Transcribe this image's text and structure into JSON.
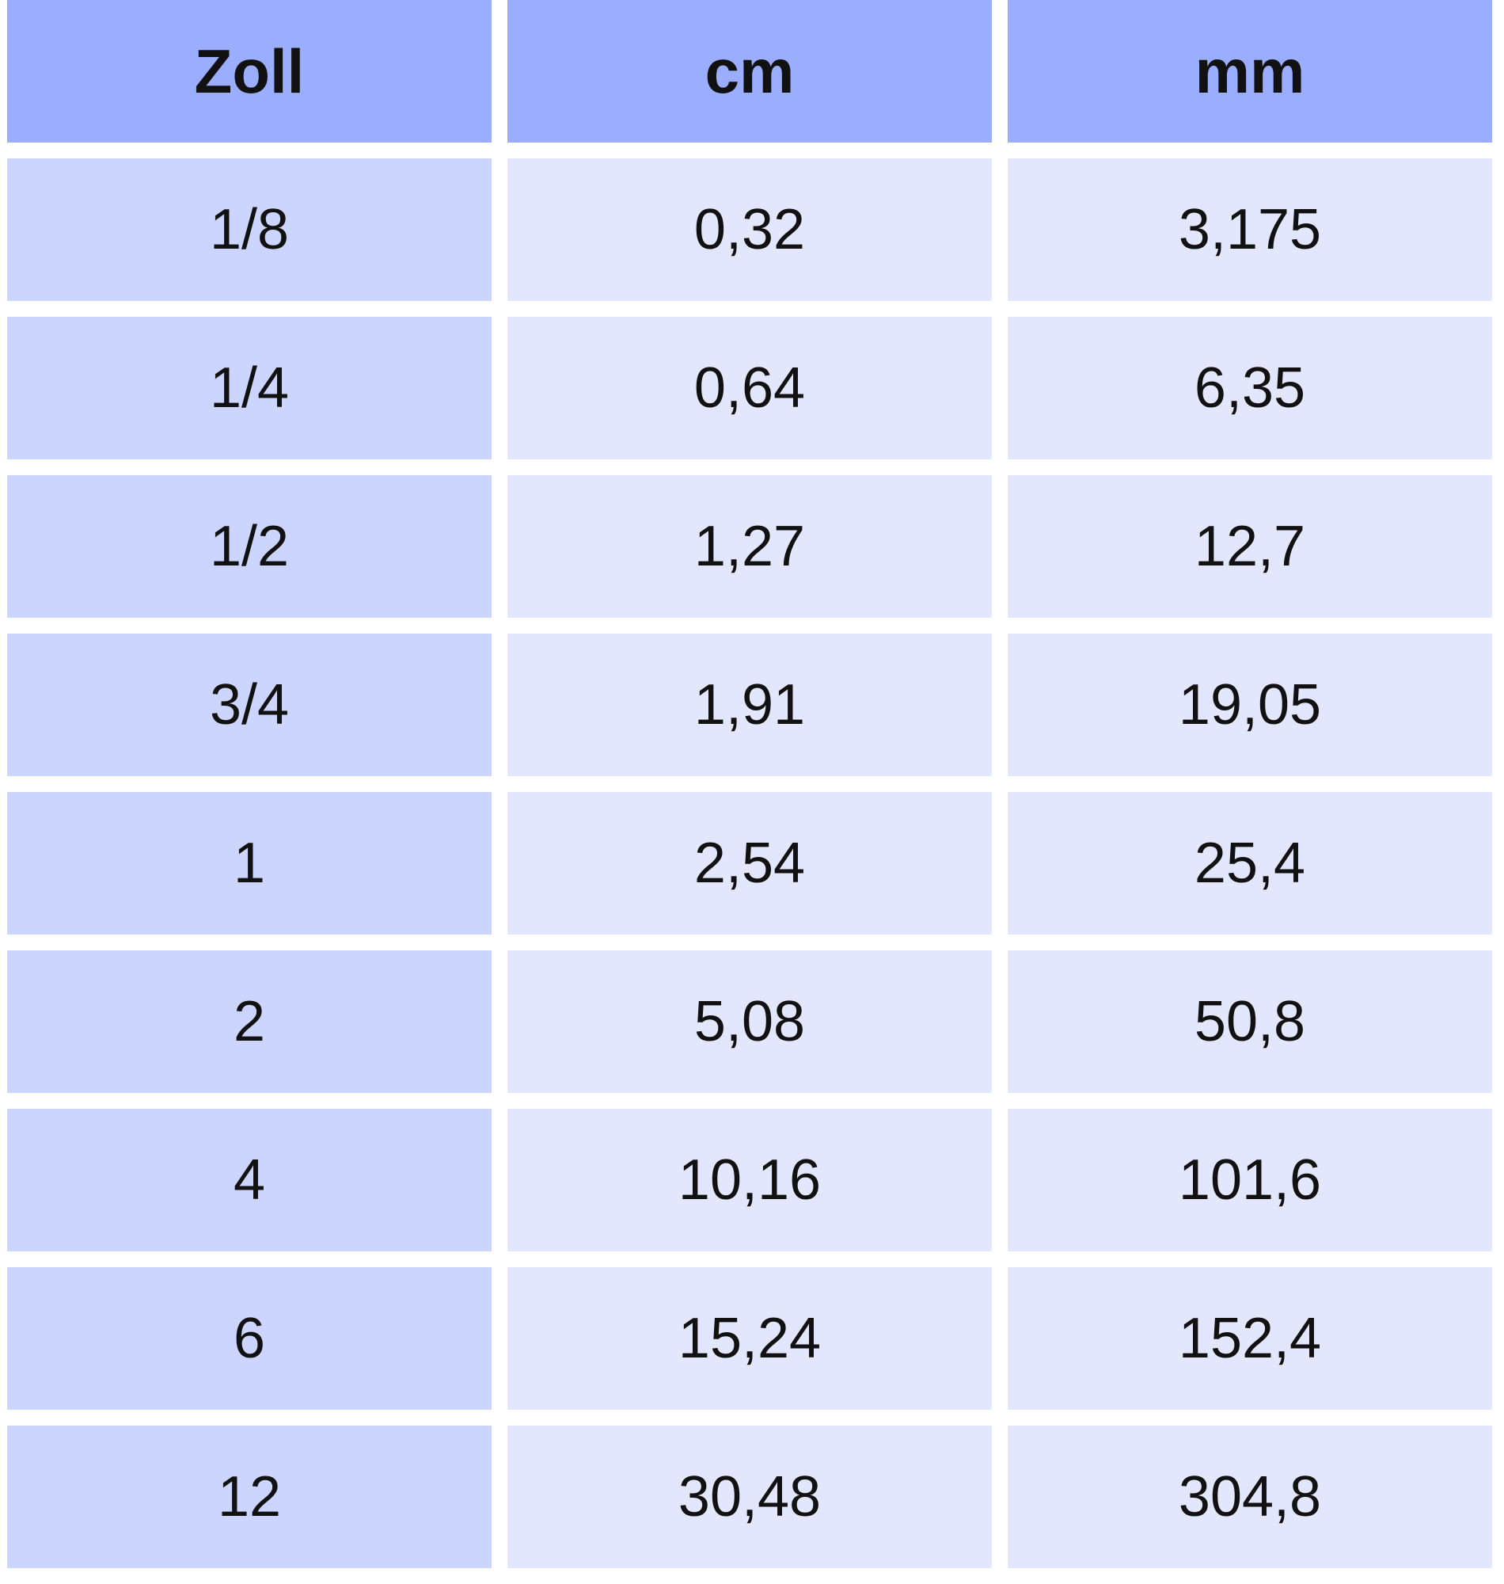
{
  "headers": [
    "Zoll",
    "cm",
    "mm"
  ],
  "rows": [
    [
      "1/8",
      "0,32",
      "3,175"
    ],
    [
      "1/4",
      "0,64",
      "6,35"
    ],
    [
      "1/2",
      "1,27",
      "12,7"
    ],
    [
      "3/4",
      "1,91",
      "19,05"
    ],
    [
      "1",
      "2,54",
      "25,4"
    ],
    [
      "2",
      "5,08",
      "50,8"
    ],
    [
      "4",
      "10,16",
      "101,6"
    ],
    [
      "6",
      "15,24",
      "152,4"
    ],
    [
      "12",
      "30,48",
      "304,8"
    ]
  ],
  "colors": {
    "header_bg": "#9badff",
    "first_col_bg": "#ccd5fd",
    "other_col_bg": "#e2e7fd",
    "text": "#111111"
  }
}
